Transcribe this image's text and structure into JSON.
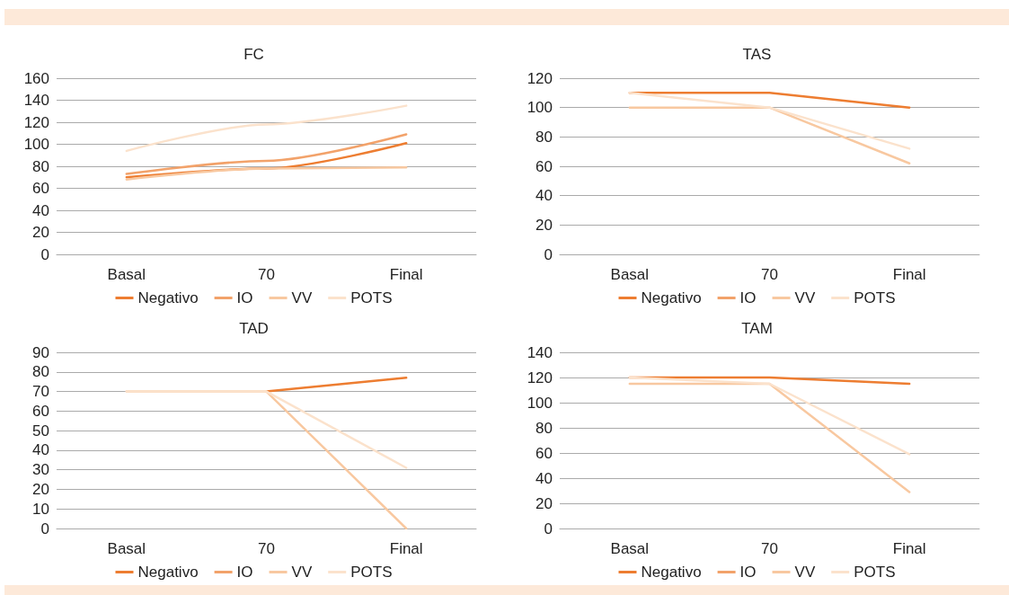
{
  "chart_data": [
    {
      "type": "line",
      "title": "FC",
      "categories": [
        "Basal",
        "70",
        "Final"
      ],
      "ylim": [
        0,
        160
      ],
      "yticks": [
        0,
        20,
        40,
        60,
        80,
        100,
        120,
        140,
        160
      ],
      "grid": "y",
      "legend": "bottom",
      "marker": "none",
      "line_style": "solid",
      "series": [
        {
          "name": "Negativo",
          "color": "#ed7d31",
          "values": [
            70,
            78,
            101
          ]
        },
        {
          "name": "IO",
          "color": "#f2a26a",
          "values": [
            73,
            85,
            109
          ]
        },
        {
          "name": "VV",
          "color": "#f8c8a0",
          "values": [
            68,
            78,
            79
          ]
        },
        {
          "name": "POTS",
          "color": "#fbe2cc",
          "values": [
            94,
            118,
            135
          ]
        }
      ]
    },
    {
      "type": "line",
      "title": "TAS",
      "categories": [
        "Basal",
        "70",
        "Final"
      ],
      "ylim": [
        0,
        120
      ],
      "yticks": [
        0,
        20,
        40,
        60,
        80,
        100,
        120
      ],
      "grid": "y",
      "legend": "bottom",
      "marker": "none",
      "line_style": "solid",
      "series": [
        {
          "name": "Negativo",
          "color": "#ed7d31",
          "values": [
            110,
            110,
            100
          ]
        },
        {
          "name": "IO",
          "color": "#f2a26a",
          "values": [
            null,
            null,
            null
          ]
        },
        {
          "name": "VV",
          "color": "#f8c8a0",
          "values": [
            100,
            100,
            62
          ]
        },
        {
          "name": "POTS",
          "color": "#fbe2cc",
          "values": [
            110,
            100,
            72
          ]
        }
      ]
    },
    {
      "type": "line",
      "title": "TAD",
      "categories": [
        "Basal",
        "70",
        "Final"
      ],
      "ylim": [
        0,
        90
      ],
      "yticks": [
        0,
        10,
        20,
        30,
        40,
        50,
        60,
        70,
        80,
        90
      ],
      "grid": "y",
      "legend": "bottom",
      "marker": "none",
      "line_style": "solid",
      "series": [
        {
          "name": "Negativo",
          "color": "#ed7d31",
          "values": [
            null,
            70,
            77
          ]
        },
        {
          "name": "IO",
          "color": "#f2a26a",
          "values": [
            null,
            null,
            null
          ]
        },
        {
          "name": "VV",
          "color": "#f8c8a0",
          "values": [
            70,
            70,
            0
          ]
        },
        {
          "name": "POTS",
          "color": "#fbe2cc",
          "values": [
            70,
            70,
            31
          ]
        }
      ]
    },
    {
      "type": "line",
      "title": "TAM",
      "categories": [
        "Basal",
        "70",
        "Final"
      ],
      "ylim": [
        0,
        140
      ],
      "yticks": [
        0,
        20,
        40,
        60,
        80,
        100,
        120,
        140
      ],
      "grid": "y",
      "legend": "bottom",
      "marker": "none",
      "line_style": "solid",
      "series": [
        {
          "name": "Negativo",
          "color": "#ed7d31",
          "values": [
            120,
            120,
            115
          ]
        },
        {
          "name": "IO",
          "color": "#f2a26a",
          "values": [
            null,
            null,
            null
          ]
        },
        {
          "name": "VV",
          "color": "#f8c8a0",
          "values": [
            115,
            115,
            29
          ]
        },
        {
          "name": "POTS",
          "color": "#fbe2cc",
          "values": [
            120,
            115,
            59
          ]
        }
      ]
    }
  ]
}
